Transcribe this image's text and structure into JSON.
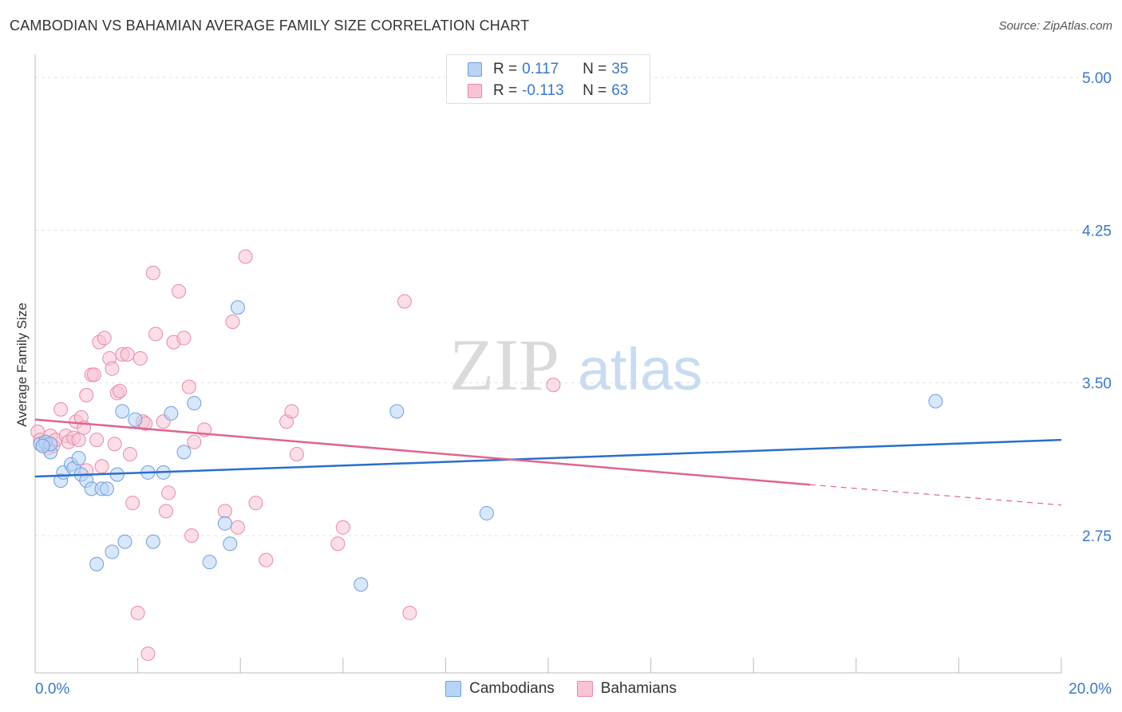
{
  "title": "CAMBODIAN VS BAHAMIAN AVERAGE FAMILY SIZE CORRELATION CHART",
  "source": "Source: ZipAtlas.com",
  "watermark": {
    "zip": "ZIP",
    "atlas": "atlas"
  },
  "colors": {
    "cambodian_fill": "#b8d4f5",
    "cambodian_stroke": "#6f9fdc",
    "cambodian_line": "#2a6fcb",
    "bahamian_fill": "#f8c3d3",
    "bahamian_stroke": "#e88aa7",
    "bahamian_line": "#e0648e",
    "tick_text": "#3a78c9",
    "grid": "#e3e3e3"
  },
  "legend": {
    "rows": [
      {
        "r_label": "R =",
        "r_value": "0.117",
        "n_label": "N =",
        "n_value": "35"
      },
      {
        "r_label": "R =",
        "r_value": "-0.113",
        "n_label": "N =",
        "n_value": "63"
      }
    ]
  },
  "chart_data": {
    "type": "scatter",
    "title": "CAMBODIAN VS BAHAMIAN AVERAGE FAMILY SIZE CORRELATION CHART",
    "xlabel": "",
    "ylabel": "Average Family Size",
    "xlim": [
      0,
      20
    ],
    "ylim": [
      2.0,
      5.1
    ],
    "x_tick_labels": [
      "0.0%",
      "20.0%"
    ],
    "y_ticks": [
      2.75,
      3.5,
      4.25,
      5.0
    ],
    "y_tick_labels": [
      "2.75",
      "3.50",
      "4.25",
      "5.00"
    ],
    "legend_position": "top-center",
    "series": [
      {
        "name": "Cambodians",
        "r": 0.117,
        "n": 35,
        "trend": {
          "x": [
            0,
            20
          ],
          "y": [
            3.04,
            3.22
          ]
        },
        "points": [
          [
            0.1,
            3.2
          ],
          [
            0.2,
            3.21
          ],
          [
            0.3,
            3.16
          ],
          [
            0.5,
            3.02
          ],
          [
            0.55,
            3.06
          ],
          [
            0.7,
            3.1
          ],
          [
            0.75,
            3.08
          ],
          [
            0.85,
            3.13
          ],
          [
            0.9,
            3.05
          ],
          [
            1.0,
            3.02
          ],
          [
            1.1,
            2.98
          ],
          [
            1.2,
            2.61
          ],
          [
            1.3,
            2.98
          ],
          [
            1.4,
            2.98
          ],
          [
            1.5,
            2.67
          ],
          [
            1.6,
            3.05
          ],
          [
            1.7,
            3.36
          ],
          [
            1.75,
            2.72
          ],
          [
            1.95,
            3.32
          ],
          [
            2.2,
            3.06
          ],
          [
            2.3,
            2.72
          ],
          [
            2.5,
            3.06
          ],
          [
            2.65,
            3.35
          ],
          [
            2.9,
            3.16
          ],
          [
            3.1,
            3.4
          ],
          [
            3.4,
            2.62
          ],
          [
            3.7,
            2.81
          ],
          [
            3.8,
            2.71
          ],
          [
            3.95,
            3.87
          ],
          [
            6.35,
            2.51
          ],
          [
            7.05,
            3.36
          ],
          [
            8.8,
            2.86
          ],
          [
            17.55,
            3.41
          ],
          [
            0.3,
            3.2
          ],
          [
            0.15,
            3.19
          ]
        ]
      },
      {
        "name": "Bahamians",
        "r": -0.113,
        "n": 63,
        "trend_solid": {
          "x": [
            0,
            15.1
          ],
          "y": [
            3.32,
            3.0
          ]
        },
        "trend_dashed": {
          "x": [
            15.1,
            20
          ],
          "y": [
            3.0,
            2.9
          ]
        },
        "points": [
          [
            0.05,
            3.26
          ],
          [
            0.1,
            3.22
          ],
          [
            0.2,
            3.2
          ],
          [
            0.3,
            3.24
          ],
          [
            0.35,
            3.19
          ],
          [
            0.4,
            3.22
          ],
          [
            0.5,
            3.37
          ],
          [
            0.6,
            3.24
          ],
          [
            0.65,
            3.21
          ],
          [
            0.75,
            3.23
          ],
          [
            0.8,
            3.31
          ],
          [
            0.85,
            3.22
          ],
          [
            0.9,
            3.33
          ],
          [
            0.95,
            3.28
          ],
          [
            1.0,
            3.44
          ],
          [
            1.1,
            3.54
          ],
          [
            1.15,
            3.54
          ],
          [
            1.2,
            3.22
          ],
          [
            1.25,
            3.7
          ],
          [
            1.3,
            3.09
          ],
          [
            1.35,
            3.72
          ],
          [
            1.45,
            3.62
          ],
          [
            1.5,
            3.57
          ],
          [
            1.55,
            3.2
          ],
          [
            1.6,
            3.45
          ],
          [
            1.65,
            3.46
          ],
          [
            1.7,
            3.64
          ],
          [
            1.8,
            3.64
          ],
          [
            1.85,
            3.15
          ],
          [
            1.9,
            2.91
          ],
          [
            2.0,
            2.37
          ],
          [
            2.05,
            3.62
          ],
          [
            2.1,
            3.31
          ],
          [
            2.15,
            3.3
          ],
          [
            2.2,
            2.17
          ],
          [
            2.3,
            4.04
          ],
          [
            2.35,
            3.74
          ],
          [
            2.5,
            3.31
          ],
          [
            2.55,
            2.87
          ],
          [
            2.6,
            2.96
          ],
          [
            2.7,
            3.7
          ],
          [
            2.8,
            3.95
          ],
          [
            2.9,
            3.72
          ],
          [
            3.0,
            3.48
          ],
          [
            3.05,
            2.75
          ],
          [
            3.1,
            3.21
          ],
          [
            3.3,
            3.27
          ],
          [
            3.7,
            2.87
          ],
          [
            3.85,
            3.8
          ],
          [
            3.95,
            2.79
          ],
          [
            4.1,
            4.12
          ],
          [
            4.3,
            2.91
          ],
          [
            4.5,
            2.63
          ],
          [
            4.9,
            3.31
          ],
          [
            5.0,
            3.36
          ],
          [
            5.1,
            3.15
          ],
          [
            5.9,
            2.71
          ],
          [
            6.0,
            2.79
          ],
          [
            7.2,
            3.9
          ],
          [
            7.3,
            2.37
          ],
          [
            10.1,
            3.49
          ],
          [
            0.25,
            3.18
          ],
          [
            1.0,
            3.07
          ]
        ]
      }
    ]
  },
  "bottom_legend": [
    "Cambodians",
    "Bahamians"
  ]
}
